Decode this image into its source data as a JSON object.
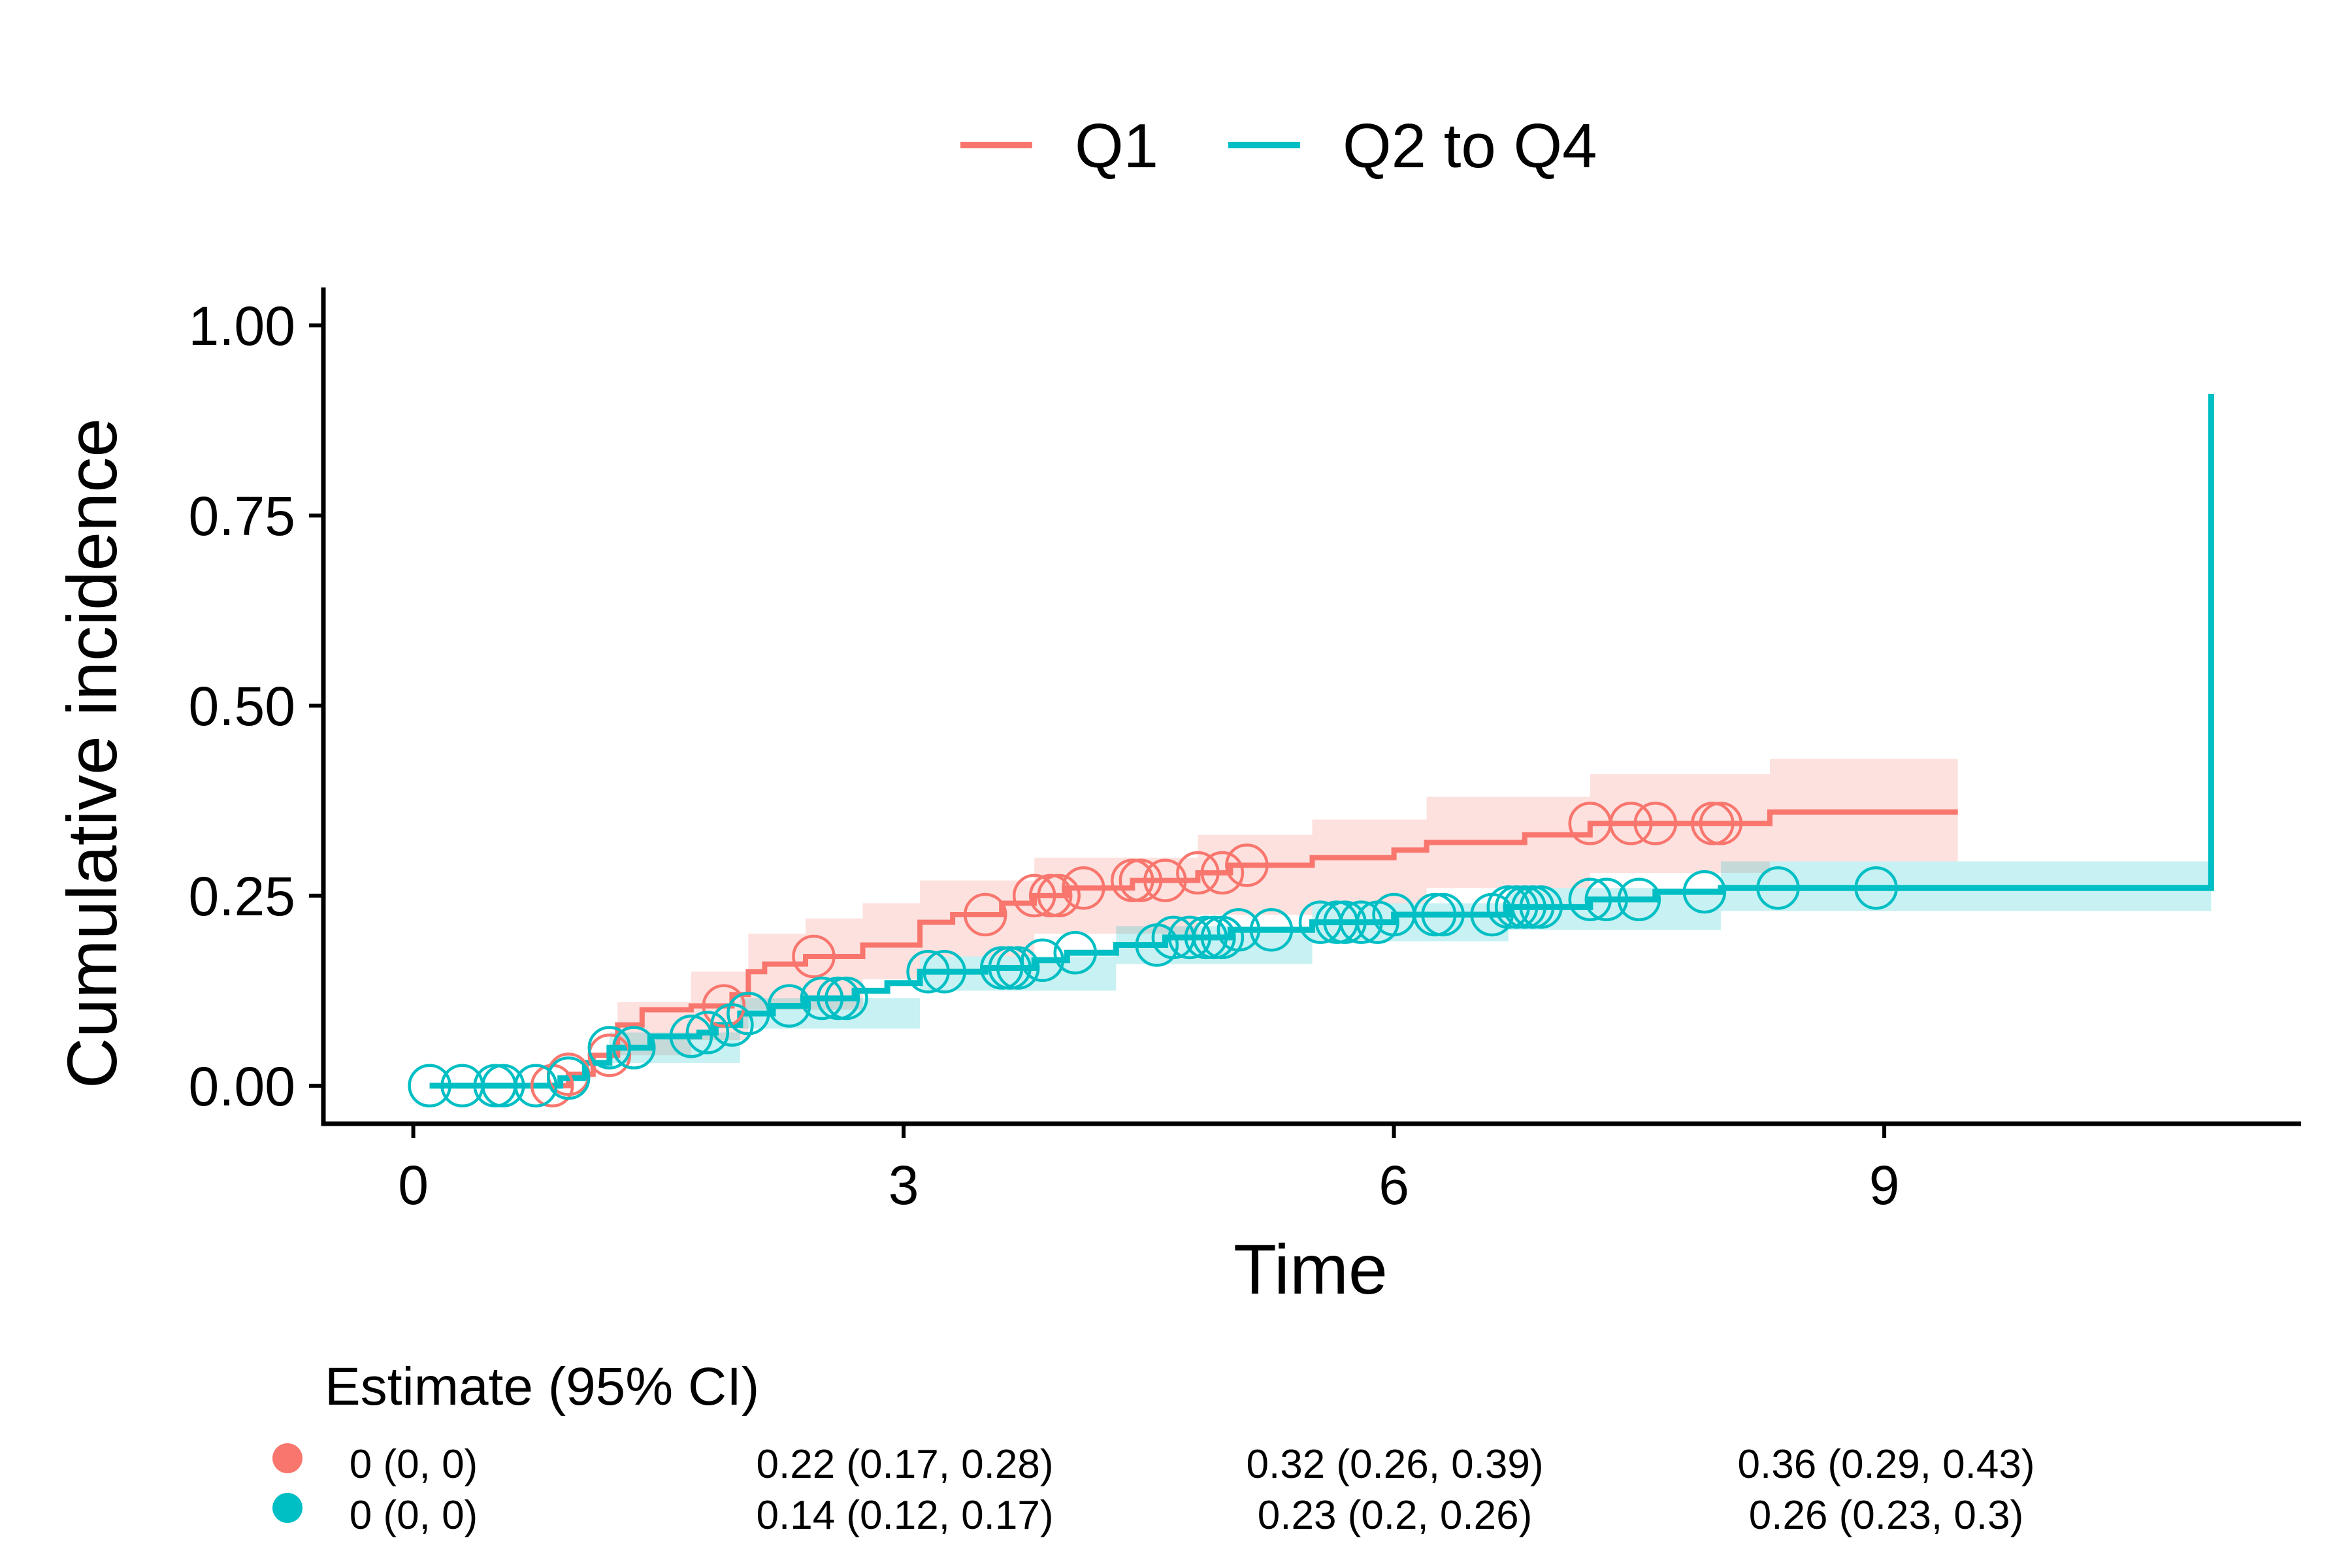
{
  "chart_data": {
    "type": "line",
    "title": "",
    "xlabel": "Time",
    "ylabel": "Cumulative incidence",
    "xlim": [
      -0.55,
      11.55
    ],
    "ylim": [
      -0.05,
      1.05
    ],
    "x_ticks": [
      0,
      3,
      6,
      9
    ],
    "x_tick_labels": [
      "0",
      "3",
      "6",
      "9"
    ],
    "y_ticks": [
      0,
      0.25,
      0.5,
      0.75,
      1
    ],
    "y_tick_labels": [
      "0.00",
      "0.25",
      "0.50",
      "0.75",
      "1.00"
    ],
    "legend_position": "top",
    "series": [
      {
        "name": "Q1",
        "color": "#F8766D",
        "ci_fill": "#F8766D",
        "steps": [
          [
            0.1,
            0.0
          ],
          [
            0.8,
            0.0
          ],
          [
            0.95,
            0.015
          ],
          [
            1.1,
            0.04
          ],
          [
            1.25,
            0.08
          ],
          [
            1.4,
            0.1
          ],
          [
            1.7,
            0.105
          ],
          [
            1.95,
            0.12
          ],
          [
            2.05,
            0.15
          ],
          [
            2.15,
            0.16
          ],
          [
            2.4,
            0.17
          ],
          [
            2.75,
            0.185
          ],
          [
            3.1,
            0.215
          ],
          [
            3.3,
            0.225
          ],
          [
            3.6,
            0.24
          ],
          [
            3.8,
            0.25
          ],
          [
            4.0,
            0.26
          ],
          [
            4.4,
            0.27
          ],
          [
            4.8,
            0.28
          ],
          [
            5.0,
            0.29
          ],
          [
            5.5,
            0.3
          ],
          [
            6.0,
            0.31
          ],
          [
            6.2,
            0.32
          ],
          [
            6.8,
            0.33
          ],
          [
            7.2,
            0.345
          ],
          [
            8.3,
            0.36
          ],
          [
            9.45,
            0.36
          ]
        ],
        "ci_lower": [
          [
            0.1,
            0.0
          ],
          [
            0.8,
            0.0
          ],
          [
            1.25,
            0.04
          ],
          [
            1.7,
            0.06
          ],
          [
            2.05,
            0.1
          ],
          [
            2.75,
            0.14
          ],
          [
            3.1,
            0.17
          ],
          [
            3.8,
            0.2
          ],
          [
            4.8,
            0.225
          ],
          [
            5.5,
            0.24
          ],
          [
            6.2,
            0.26
          ],
          [
            7.2,
            0.28
          ],
          [
            8.3,
            0.295
          ],
          [
            9.45,
            0.295
          ]
        ],
        "ci_upper": [
          [
            0.1,
            0.0
          ],
          [
            0.8,
            0.0
          ],
          [
            1.25,
            0.11
          ],
          [
            1.7,
            0.15
          ],
          [
            2.05,
            0.2
          ],
          [
            2.4,
            0.22
          ],
          [
            2.75,
            0.24
          ],
          [
            3.1,
            0.27
          ],
          [
            3.8,
            0.3
          ],
          [
            4.8,
            0.33
          ],
          [
            5.5,
            0.35
          ],
          [
            6.2,
            0.38
          ],
          [
            7.2,
            0.41
          ],
          [
            8.3,
            0.43
          ],
          [
            9.45,
            0.43
          ]
        ],
        "censor_times": [
          0.85,
          0.95,
          1.2,
          1.9,
          2.45,
          3.5,
          3.8,
          3.9,
          3.95,
          4.1,
          4.4,
          4.45,
          4.6,
          4.8,
          4.95,
          5.1,
          7.2,
          7.45,
          7.6,
          7.95,
          8.0
        ]
      },
      {
        "name": "Q2 to Q4",
        "color": "#00BFC4",
        "ci_fill": "#00BFC4",
        "steps": [
          [
            0.1,
            0.0
          ],
          [
            0.65,
            0.0
          ],
          [
            0.9,
            0.01
          ],
          [
            1.05,
            0.03
          ],
          [
            1.2,
            0.05
          ],
          [
            1.45,
            0.065
          ],
          [
            1.75,
            0.07
          ],
          [
            1.85,
            0.08
          ],
          [
            2.0,
            0.095
          ],
          [
            2.2,
            0.105
          ],
          [
            2.4,
            0.115
          ],
          [
            2.7,
            0.125
          ],
          [
            2.9,
            0.135
          ],
          [
            3.1,
            0.15
          ],
          [
            3.5,
            0.155
          ],
          [
            3.8,
            0.165
          ],
          [
            4.0,
            0.175
          ],
          [
            4.3,
            0.185
          ],
          [
            4.6,
            0.195
          ],
          [
            5.0,
            0.205
          ],
          [
            5.5,
            0.215
          ],
          [
            6.0,
            0.225
          ],
          [
            6.7,
            0.235
          ],
          [
            7.2,
            0.245
          ],
          [
            7.6,
            0.255
          ],
          [
            8.0,
            0.26
          ],
          [
            11.0,
            0.26
          ],
          [
            11.0,
            0.91
          ]
        ],
        "ci_lower": [
          [
            0.1,
            0.0
          ],
          [
            0.65,
            0.0
          ],
          [
            1.2,
            0.03
          ],
          [
            2.0,
            0.075
          ],
          [
            3.1,
            0.125
          ],
          [
            4.3,
            0.16
          ],
          [
            5.5,
            0.19
          ],
          [
            6.7,
            0.205
          ],
          [
            8.0,
            0.23
          ],
          [
            11.0,
            0.23
          ]
        ],
        "ci_upper": [
          [
            0.1,
            0.0
          ],
          [
            0.65,
            0.0
          ],
          [
            1.2,
            0.07
          ],
          [
            2.0,
            0.115
          ],
          [
            3.1,
            0.17
          ],
          [
            4.3,
            0.21
          ],
          [
            5.5,
            0.24
          ],
          [
            6.7,
            0.26
          ],
          [
            8.0,
            0.295
          ],
          [
            11.0,
            0.295
          ]
        ],
        "censor_times": [
          0.1,
          0.3,
          0.5,
          0.55,
          0.75,
          0.95,
          1.2,
          1.35,
          1.7,
          1.8,
          1.95,
          2.05,
          2.3,
          2.5,
          2.6,
          2.65,
          3.15,
          3.25,
          3.6,
          3.65,
          3.7,
          3.85,
          4.05,
          4.55,
          4.65,
          4.75,
          4.85,
          4.9,
          4.95,
          5.05,
          5.25,
          5.55,
          5.65,
          5.7,
          5.8,
          5.9,
          6.0,
          6.25,
          6.3,
          6.6,
          6.7,
          6.75,
          6.8,
          6.85,
          6.9,
          7.2,
          7.3,
          7.5,
          7.9,
          8.35,
          8.95
        ]
      }
    ]
  },
  "risk_table": {
    "title": "Estimate (95% CI)",
    "rows": [
      {
        "series": "Q1",
        "color": "#F8766D",
        "cells": [
          "0 (0, 0)",
          "0.22 (0.17, 0.28)",
          "0.32 (0.26, 0.39)",
          "0.36 (0.29, 0.43)"
        ]
      },
      {
        "series": "Q2 to Q4",
        "color": "#00BFC4",
        "cells": [
          "0 (0, 0)",
          "0.14 (0.12, 0.17)",
          "0.23 (0.2, 0.26)",
          "0.26 (0.23, 0.3)"
        ]
      }
    ]
  }
}
